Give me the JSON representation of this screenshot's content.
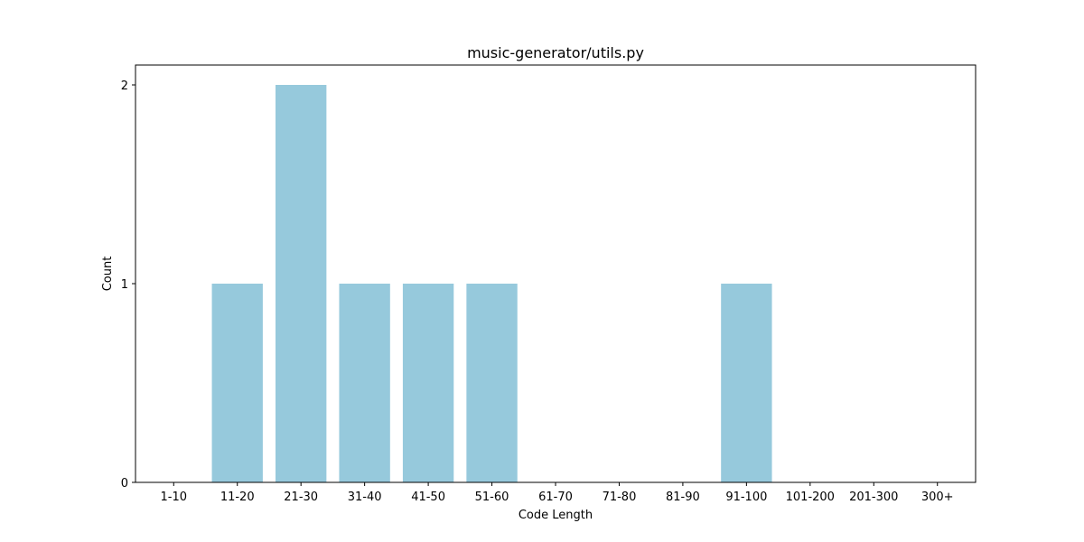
{
  "chart_data": {
    "type": "bar",
    "title": "music-generator/utils.py",
    "xlabel": "Code Length",
    "ylabel": "Count",
    "categories": [
      "1-10",
      "11-20",
      "21-30",
      "31-40",
      "41-50",
      "51-60",
      "61-70",
      "71-80",
      "81-90",
      "91-100",
      "101-200",
      "201-300",
      "300+"
    ],
    "values": [
      0,
      1,
      2,
      1,
      1,
      1,
      0,
      0,
      0,
      1,
      0,
      0,
      0
    ],
    "ylim": [
      0,
      2.1
    ],
    "yticks": [
      0,
      1,
      2
    ],
    "grid": false,
    "bar_color": "#96c9dc"
  }
}
